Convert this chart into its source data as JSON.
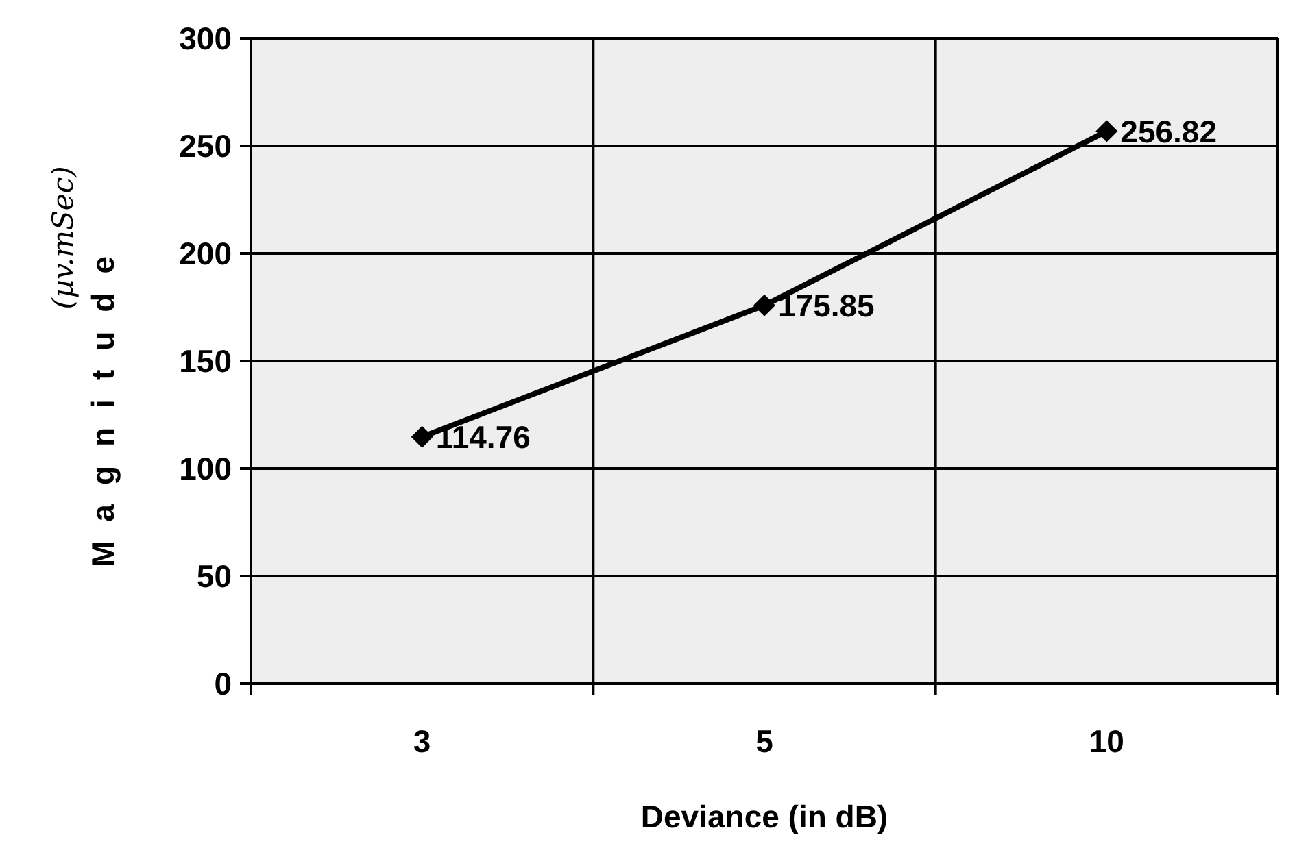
{
  "chart_data": {
    "type": "line",
    "xlabel": "Deviance (in dB)",
    "ylabel": "Magnitude",
    "annotations": [
      "(µv.mSec)"
    ],
    "categories": [
      "3",
      "5",
      "10"
    ],
    "series": [
      {
        "color": "#000000",
        "values": [
          114.76,
          175.85,
          256.82
        ]
      }
    ],
    "ylim": [
      0,
      300
    ],
    "yticks": [
      0,
      50,
      100,
      150,
      200,
      250,
      300
    ],
    "grid": true,
    "marker": "diamond",
    "data_labels": true
  }
}
